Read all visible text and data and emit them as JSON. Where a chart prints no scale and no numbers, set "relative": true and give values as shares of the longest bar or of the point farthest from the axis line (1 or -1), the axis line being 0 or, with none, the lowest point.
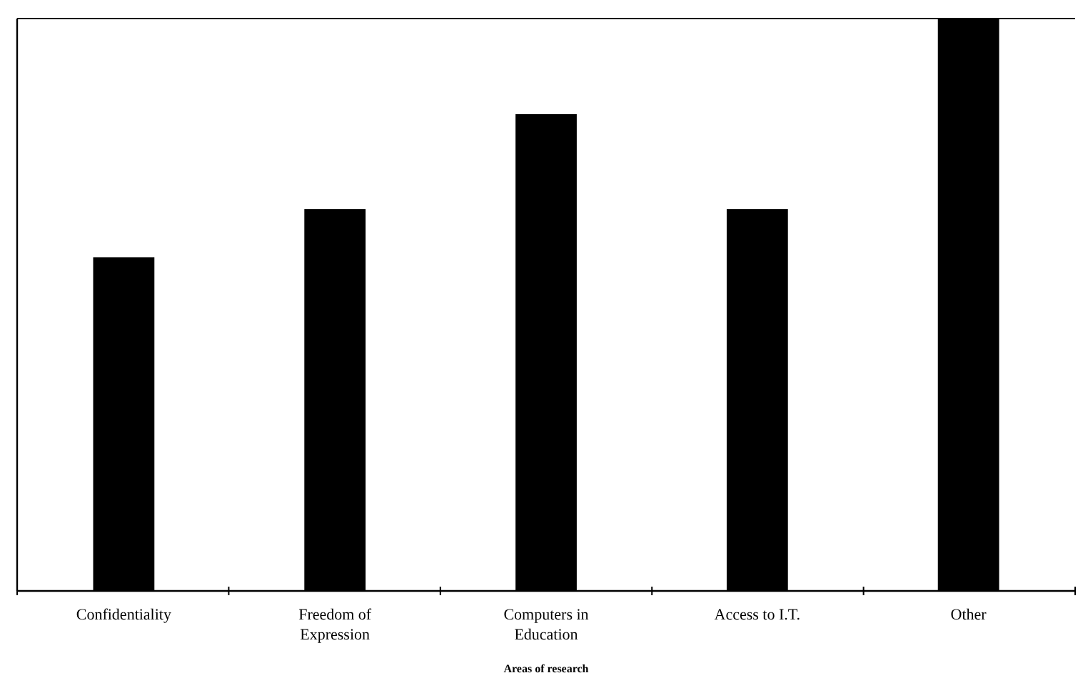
{
  "chart_data": {
    "type": "bar",
    "xlabel": "Areas of research",
    "relative": true,
    "categories": [
      "Confidentiality",
      "Freedom of Expression",
      "Computers in Education",
      "Access to I.T.",
      "Other"
    ],
    "values": [
      0.583,
      0.667,
      0.833,
      0.667,
      1
    ],
    "color": "#000000"
  }
}
